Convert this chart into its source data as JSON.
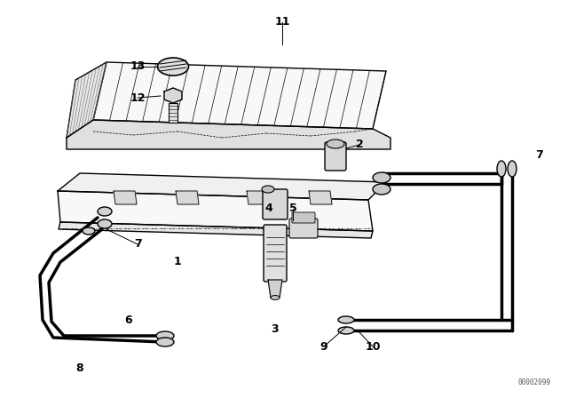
{
  "background_color": "#ffffff",
  "line_color": "#000000",
  "text_color": "#000000",
  "watermark": "00002099",
  "fig_width": 6.4,
  "fig_height": 4.48,
  "dpi": 100
}
